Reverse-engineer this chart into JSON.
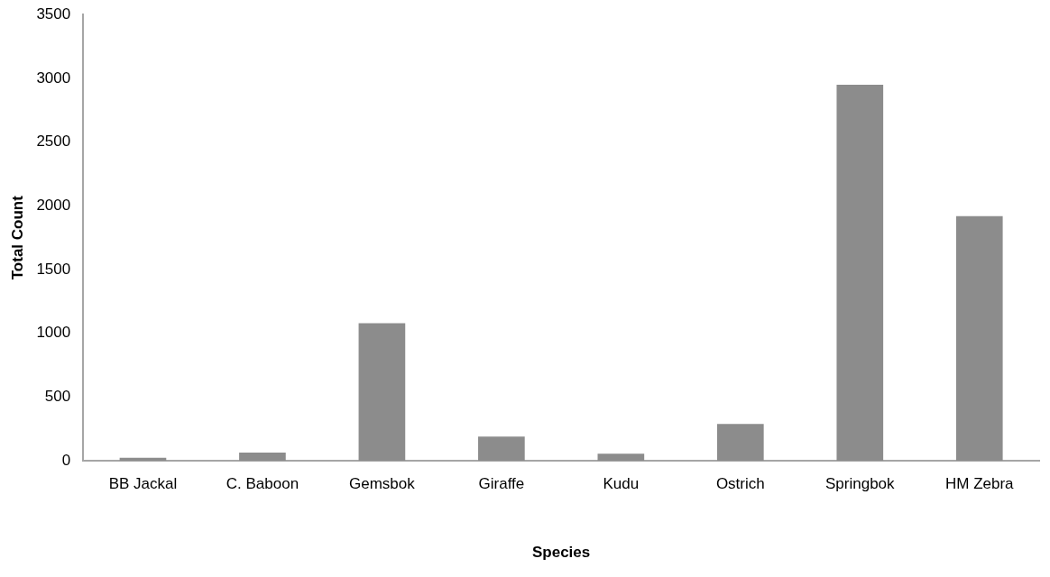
{
  "chart_data": {
    "type": "bar",
    "xlabel": "Species",
    "ylabel": "Total Count",
    "categories": [
      "BB Jackal",
      "C. Baboon",
      "Gemsbok",
      "Giraffe",
      "Kudu",
      "Ostrich",
      "Springbok",
      "HM Zebra"
    ],
    "values": [
      25,
      65,
      1080,
      190,
      57,
      290,
      2950,
      1920
    ],
    "color": "#8c8c8c",
    "ylim": [
      0,
      3500
    ],
    "yticks": [
      0,
      500,
      1000,
      1500,
      2000,
      2500,
      3000,
      3500
    ],
    "grid": false,
    "legend": false
  }
}
